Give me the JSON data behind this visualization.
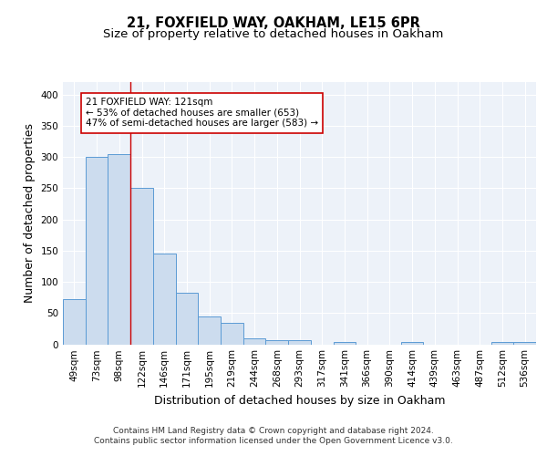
{
  "title": "21, FOXFIELD WAY, OAKHAM, LE15 6PR",
  "subtitle": "Size of property relative to detached houses in Oakham",
  "xlabel": "Distribution of detached houses by size in Oakham",
  "ylabel": "Number of detached properties",
  "bin_labels": [
    "49sqm",
    "73sqm",
    "98sqm",
    "122sqm",
    "146sqm",
    "171sqm",
    "195sqm",
    "219sqm",
    "244sqm",
    "268sqm",
    "293sqm",
    "317sqm",
    "341sqm",
    "366sqm",
    "390sqm",
    "414sqm",
    "439sqm",
    "463sqm",
    "487sqm",
    "512sqm",
    "536sqm"
  ],
  "bar_heights": [
    72,
    300,
    305,
    250,
    145,
    83,
    45,
    35,
    10,
    6,
    6,
    0,
    3,
    0,
    0,
    3,
    0,
    0,
    0,
    3,
    3
  ],
  "bar_color": "#ccdcee",
  "bar_edge_color": "#5b9bd5",
  "red_line_index": 3,
  "annotation_text": "21 FOXFIELD WAY: 121sqm\n← 53% of detached houses are smaller (653)\n47% of semi-detached houses are larger (583) →",
  "annotation_box_color": "#ffffff",
  "annotation_box_edge": "#cc0000",
  "footer_text": "Contains HM Land Registry data © Crown copyright and database right 2024.\nContains public sector information licensed under the Open Government Licence v3.0.",
  "ylim": [
    0,
    420
  ],
  "yticks": [
    0,
    50,
    100,
    150,
    200,
    250,
    300,
    350,
    400
  ],
  "bg_color": "#edf2f9",
  "grid_color": "#ffffff",
  "title_fontsize": 10.5,
  "subtitle_fontsize": 9.5,
  "axis_label_fontsize": 9,
  "tick_fontsize": 7.5,
  "footer_fontsize": 6.5,
  "annotation_fontsize": 7.5
}
